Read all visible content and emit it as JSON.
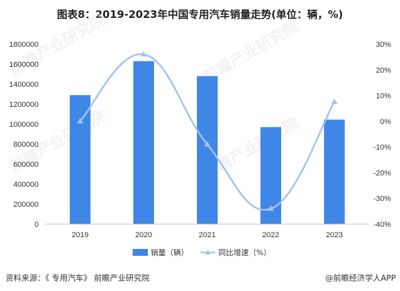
{
  "title": "图表8：2019-2023年中国专用汽车销量走势(单位：辆，%)",
  "source": "资料来源：《 专用汽车》 前瞻产业研究院",
  "brand": "@前瞻经济学人APP",
  "watermark": "前瞻产业研究院",
  "colors": {
    "bar": "#3f87e6",
    "line": "#a3c2f0",
    "axis": "#bfbfbf",
    "marker": "#a3c2f0"
  },
  "chart_data": {
    "type": "bar",
    "categories": [
      "2019",
      "2020",
      "2021",
      "2022",
      "2023"
    ],
    "series": [
      {
        "name": "销量（辆）",
        "type": "bar",
        "axis": "left",
        "values": [
          1290000,
          1630000,
          1480000,
          970000,
          1045000
        ]
      },
      {
        "name": "同比增速（%）",
        "type": "line",
        "axis": "right",
        "smooth": true,
        "values": [
          0,
          26,
          -9,
          -34,
          7.5
        ]
      }
    ],
    "y_left": {
      "min": 0,
      "max": 1800000,
      "step": 200000,
      "ticks": [
        "0",
        "200000",
        "400000",
        "600000",
        "800000",
        "1000000",
        "1200000",
        "1400000",
        "1600000",
        "1800000"
      ]
    },
    "y_right": {
      "min": -40,
      "max": 30,
      "step": 10,
      "ticks": [
        "-40%",
        "-30%",
        "-20%",
        "-10%",
        "0%",
        "10%",
        "20%",
        "30%"
      ]
    },
    "legend_position": "bottom",
    "grid": false
  }
}
